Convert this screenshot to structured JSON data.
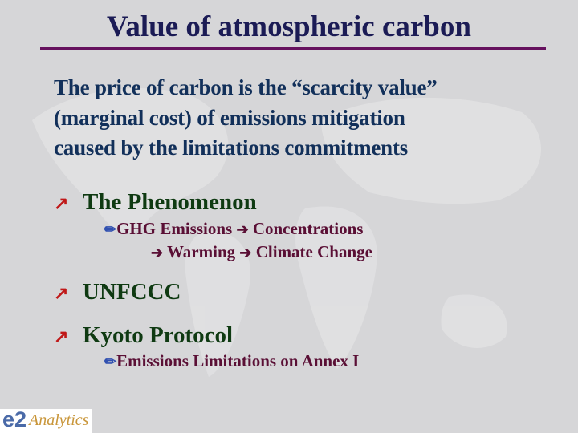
{
  "slide": {
    "title": "Value of atmospheric carbon",
    "intro_lines": [
      "The price of carbon is the “scarcity value”",
      "(marginal cost) of emissions mitigation",
      "caused by the limitations commitments"
    ],
    "bullets": [
      {
        "label": "The Phenomenon",
        "sub": [
          "GHG Emissions",
          "Concentrations",
          "Warming",
          "Climate Change"
        ]
      },
      {
        "label": "UNFCCC"
      },
      {
        "label": "Kyoto Protocol",
        "sub": [
          "Emissions Limitations on Annex I"
        ]
      }
    ],
    "bullet_icon": "red-diagonal-arrow-icon",
    "sub_icon": "pencil-icon",
    "flow_icon": "right-arrow-icon",
    "colors": {
      "title": "#1b1b55",
      "rule": "#66115e",
      "intro": "#12305a",
      "bullet": "#0f3a12",
      "sub": "#5a0f35",
      "bullet_icon": "#c01818"
    }
  },
  "logo": {
    "brand": "e2 Analytics",
    "e2": "e2",
    "name": "Analytics"
  }
}
